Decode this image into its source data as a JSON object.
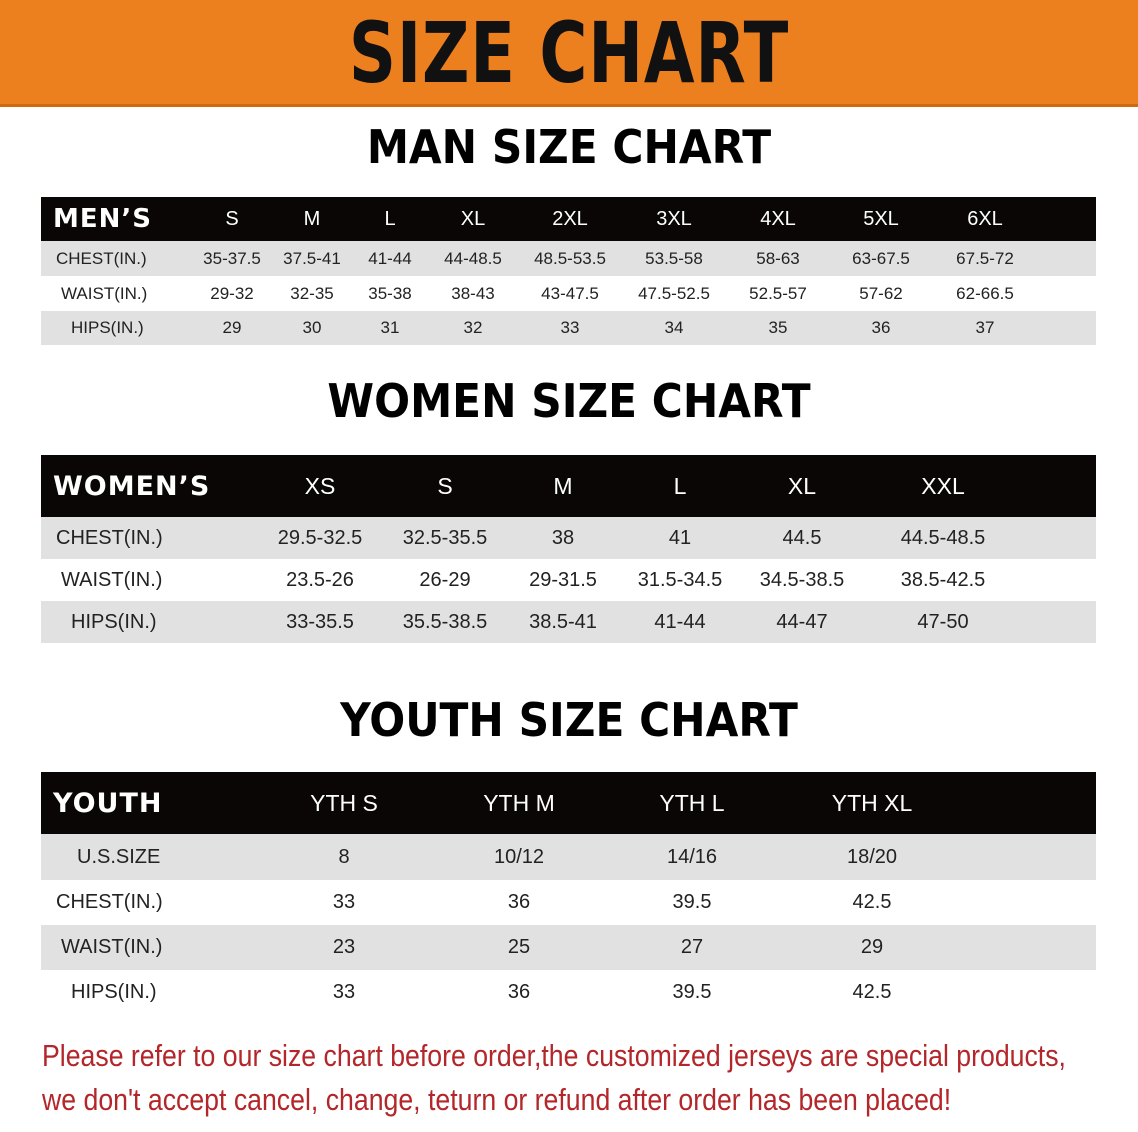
{
  "banner": {
    "title": "SIZE CHART",
    "color": "#ec7f1e"
  },
  "men": {
    "title": "MAN SIZE CHART",
    "header": "MEN’S",
    "sizes": [
      "S",
      "M",
      "L",
      "XL",
      "2XL",
      "3XL",
      "4XL",
      "5XL",
      "6XL"
    ],
    "rows": [
      {
        "label": "CHEST(IN.)",
        "values": [
          "35-37.5",
          "37.5-41",
          "41-44",
          "44-48.5",
          "48.5-53.5",
          "53.5-58",
          "58-63",
          "63-67.5",
          "67.5-72"
        ]
      },
      {
        "label": "WAIST(IN.)",
        "values": [
          "29-32",
          "32-35",
          "35-38",
          "38-43",
          "43-47.5",
          "47.5-52.5",
          "52.5-57",
          "57-62",
          "62-66.5"
        ]
      },
      {
        "label": "HIPS(IN.)",
        "values": [
          "29",
          "30",
          "31",
          "32",
          "33",
          "34",
          "35",
          "36",
          "37"
        ]
      }
    ]
  },
  "women": {
    "title": "WOMEN SIZE CHART",
    "header": "WOMEN’S",
    "sizes": [
      "XS",
      "S",
      "M",
      "L",
      "XL",
      "XXL"
    ],
    "rows": [
      {
        "label": "CHEST(IN.)",
        "values": [
          "29.5-32.5",
          "32.5-35.5",
          "38",
          "41",
          "44.5",
          "44.5-48.5"
        ]
      },
      {
        "label": "WAIST(IN.)",
        "values": [
          "23.5-26",
          "26-29",
          "29-31.5",
          "31.5-34.5",
          "34.5-38.5",
          "38.5-42.5"
        ]
      },
      {
        "label": "HIPS(IN.)",
        "values": [
          "33-35.5",
          "35.5-38.5",
          "38.5-41",
          "41-44",
          "44-47",
          "47-50"
        ]
      }
    ]
  },
  "youth": {
    "title": "YOUTH SIZE CHART",
    "header": "YOUTH",
    "sizes": [
      "YTH S",
      "YTH M",
      "YTH L",
      "YTH XL"
    ],
    "rows": [
      {
        "label": "U.S.SIZE",
        "values": [
          "8",
          "10/12",
          "14/16",
          "18/20"
        ]
      },
      {
        "label": "CHEST(IN.)",
        "values": [
          "33",
          "36",
          "39.5",
          "42.5"
        ]
      },
      {
        "label": "WAIST(IN.)",
        "values": [
          "23",
          "25",
          "27",
          "29"
        ]
      },
      {
        "label": "HIPS(IN.)",
        "values": [
          "33",
          "36",
          "39.5",
          "42.5"
        ]
      }
    ]
  },
  "footer": {
    "line1": "Please refer to our size chart before order,the customized jerseys are special products,",
    "line2": "we don't accept cancel, change, teturn or refund after order has been placed!",
    "color": "#b3262a"
  }
}
